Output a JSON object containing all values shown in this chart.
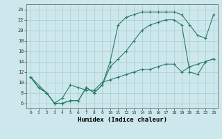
{
  "title": "",
  "xlabel": "Humidex (Indice chaleur)",
  "bg_color": "#cce8ec",
  "grid_color": "#aacccc",
  "line_color": "#2a7a6a",
  "curve1_x": [
    0,
    1,
    2,
    3,
    4,
    5,
    6,
    7,
    8,
    9,
    10,
    11,
    12,
    13,
    14,
    15,
    16,
    17,
    18,
    19,
    20,
    21,
    22,
    23
  ],
  "curve1_y": [
    11,
    9,
    8,
    6,
    6,
    6.5,
    6.5,
    9,
    8,
    9.5,
    14,
    21,
    22.5,
    23,
    23.5,
    23.5,
    23.5,
    23.5,
    23.5,
    23,
    21,
    19,
    18.5,
    23
  ],
  "curve2_x": [
    0,
    1,
    2,
    3,
    4,
    5,
    6,
    7,
    8,
    9,
    10,
    11,
    12,
    13,
    14,
    15,
    16,
    17,
    18,
    19,
    20,
    21,
    22,
    23
  ],
  "curve2_y": [
    11,
    9,
    8,
    6,
    6,
    6.5,
    6.5,
    9,
    8,
    9.5,
    13,
    14.5,
    16,
    18,
    20,
    21,
    21.5,
    22,
    22,
    21,
    12,
    11.5,
    14,
    14.5
  ],
  "curve3_x": [
    0,
    2,
    3,
    4,
    5,
    6,
    7,
    8,
    9,
    10,
    11,
    12,
    13,
    14,
    15,
    16,
    17,
    18,
    19,
    20,
    21,
    22,
    23
  ],
  "curve3_y": [
    11,
    8,
    6,
    7,
    9.5,
    9,
    8.5,
    8.5,
    10,
    10.5,
    11,
    11.5,
    12,
    12.5,
    12.5,
    13,
    13.5,
    13.5,
    12,
    13,
    13.5,
    14,
    14.5
  ],
  "xlim": [
    -0.5,
    23.5
  ],
  "ylim": [
    5,
    25
  ],
  "yticks": [
    6,
    8,
    10,
    12,
    14,
    16,
    18,
    20,
    22,
    24
  ],
  "xticks": [
    0,
    1,
    2,
    3,
    4,
    5,
    6,
    7,
    8,
    9,
    10,
    11,
    12,
    13,
    14,
    15,
    16,
    17,
    18,
    19,
    20,
    21,
    22,
    23
  ]
}
